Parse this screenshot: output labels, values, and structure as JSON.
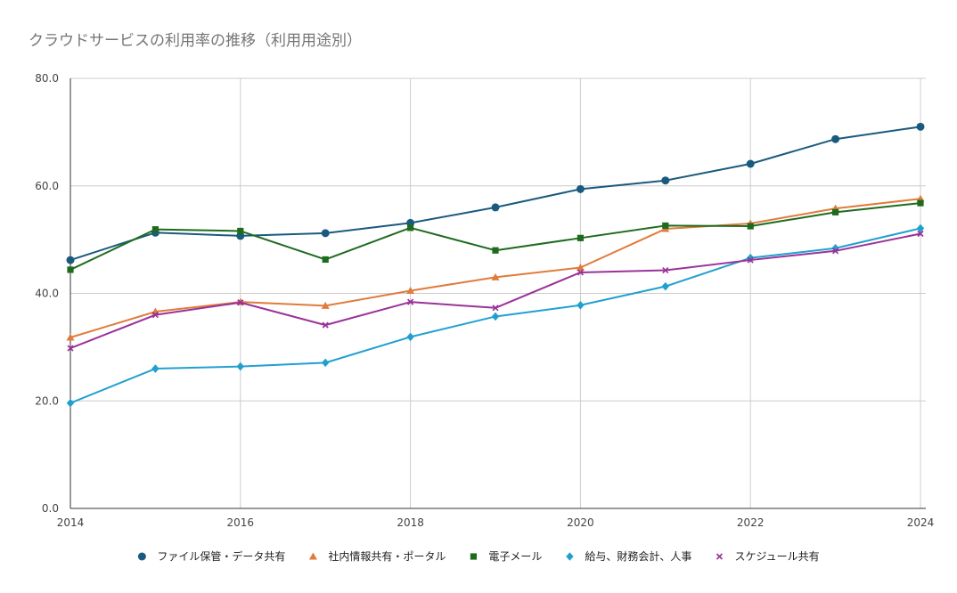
{
  "chart_data": {
    "type": "line",
    "title": "クラウドサービスの利用率の推移（利用用途別）",
    "xlabel": "",
    "ylabel": "",
    "x": [
      2014,
      2015,
      2016,
      2017,
      2018,
      2019,
      2020,
      2021,
      2022,
      2023,
      2024
    ],
    "xlim": [
      2014,
      2024
    ],
    "ylim": [
      0,
      80
    ],
    "x_ticks": [
      "2014",
      "2016",
      "2018",
      "2020",
      "2022",
      "2024"
    ],
    "y_ticks": [
      "0.0",
      "20.0",
      "40.0",
      "60.0",
      "80.0"
    ],
    "grid": true,
    "legend_position": "bottom",
    "series": [
      {
        "name": "ファイル保管・データ共有",
        "color": "#1a5a7e",
        "marker": "circle",
        "values": [
          46.2,
          51.3,
          50.7,
          51.2,
          53.1,
          56.0,
          59.4,
          61.0,
          64.1,
          68.7,
          71.0
        ]
      },
      {
        "name": "社内情報共有・ポータル",
        "color": "#e07b3c",
        "marker": "triangle",
        "values": [
          31.8,
          36.6,
          38.4,
          37.7,
          40.5,
          43.0,
          44.8,
          52.0,
          53.0,
          55.8,
          57.6
        ]
      },
      {
        "name": "電子メール",
        "color": "#1e6b1e",
        "marker": "square",
        "values": [
          44.4,
          51.9,
          51.6,
          46.3,
          52.2,
          48.0,
          50.3,
          52.6,
          52.5,
          55.1,
          56.8
        ]
      },
      {
        "name": "給与、財務会計、人事",
        "color": "#21a0cf",
        "marker": "diamond",
        "values": [
          19.6,
          26.0,
          26.4,
          27.1,
          31.9,
          35.7,
          37.8,
          41.3,
          46.6,
          48.4,
          52.1
        ]
      },
      {
        "name": "スケジュール共有",
        "color": "#993399",
        "marker": "x",
        "values": [
          29.8,
          36.0,
          38.3,
          34.1,
          38.4,
          37.3,
          43.9,
          44.3,
          46.2,
          47.9,
          51.1
        ]
      }
    ]
  }
}
